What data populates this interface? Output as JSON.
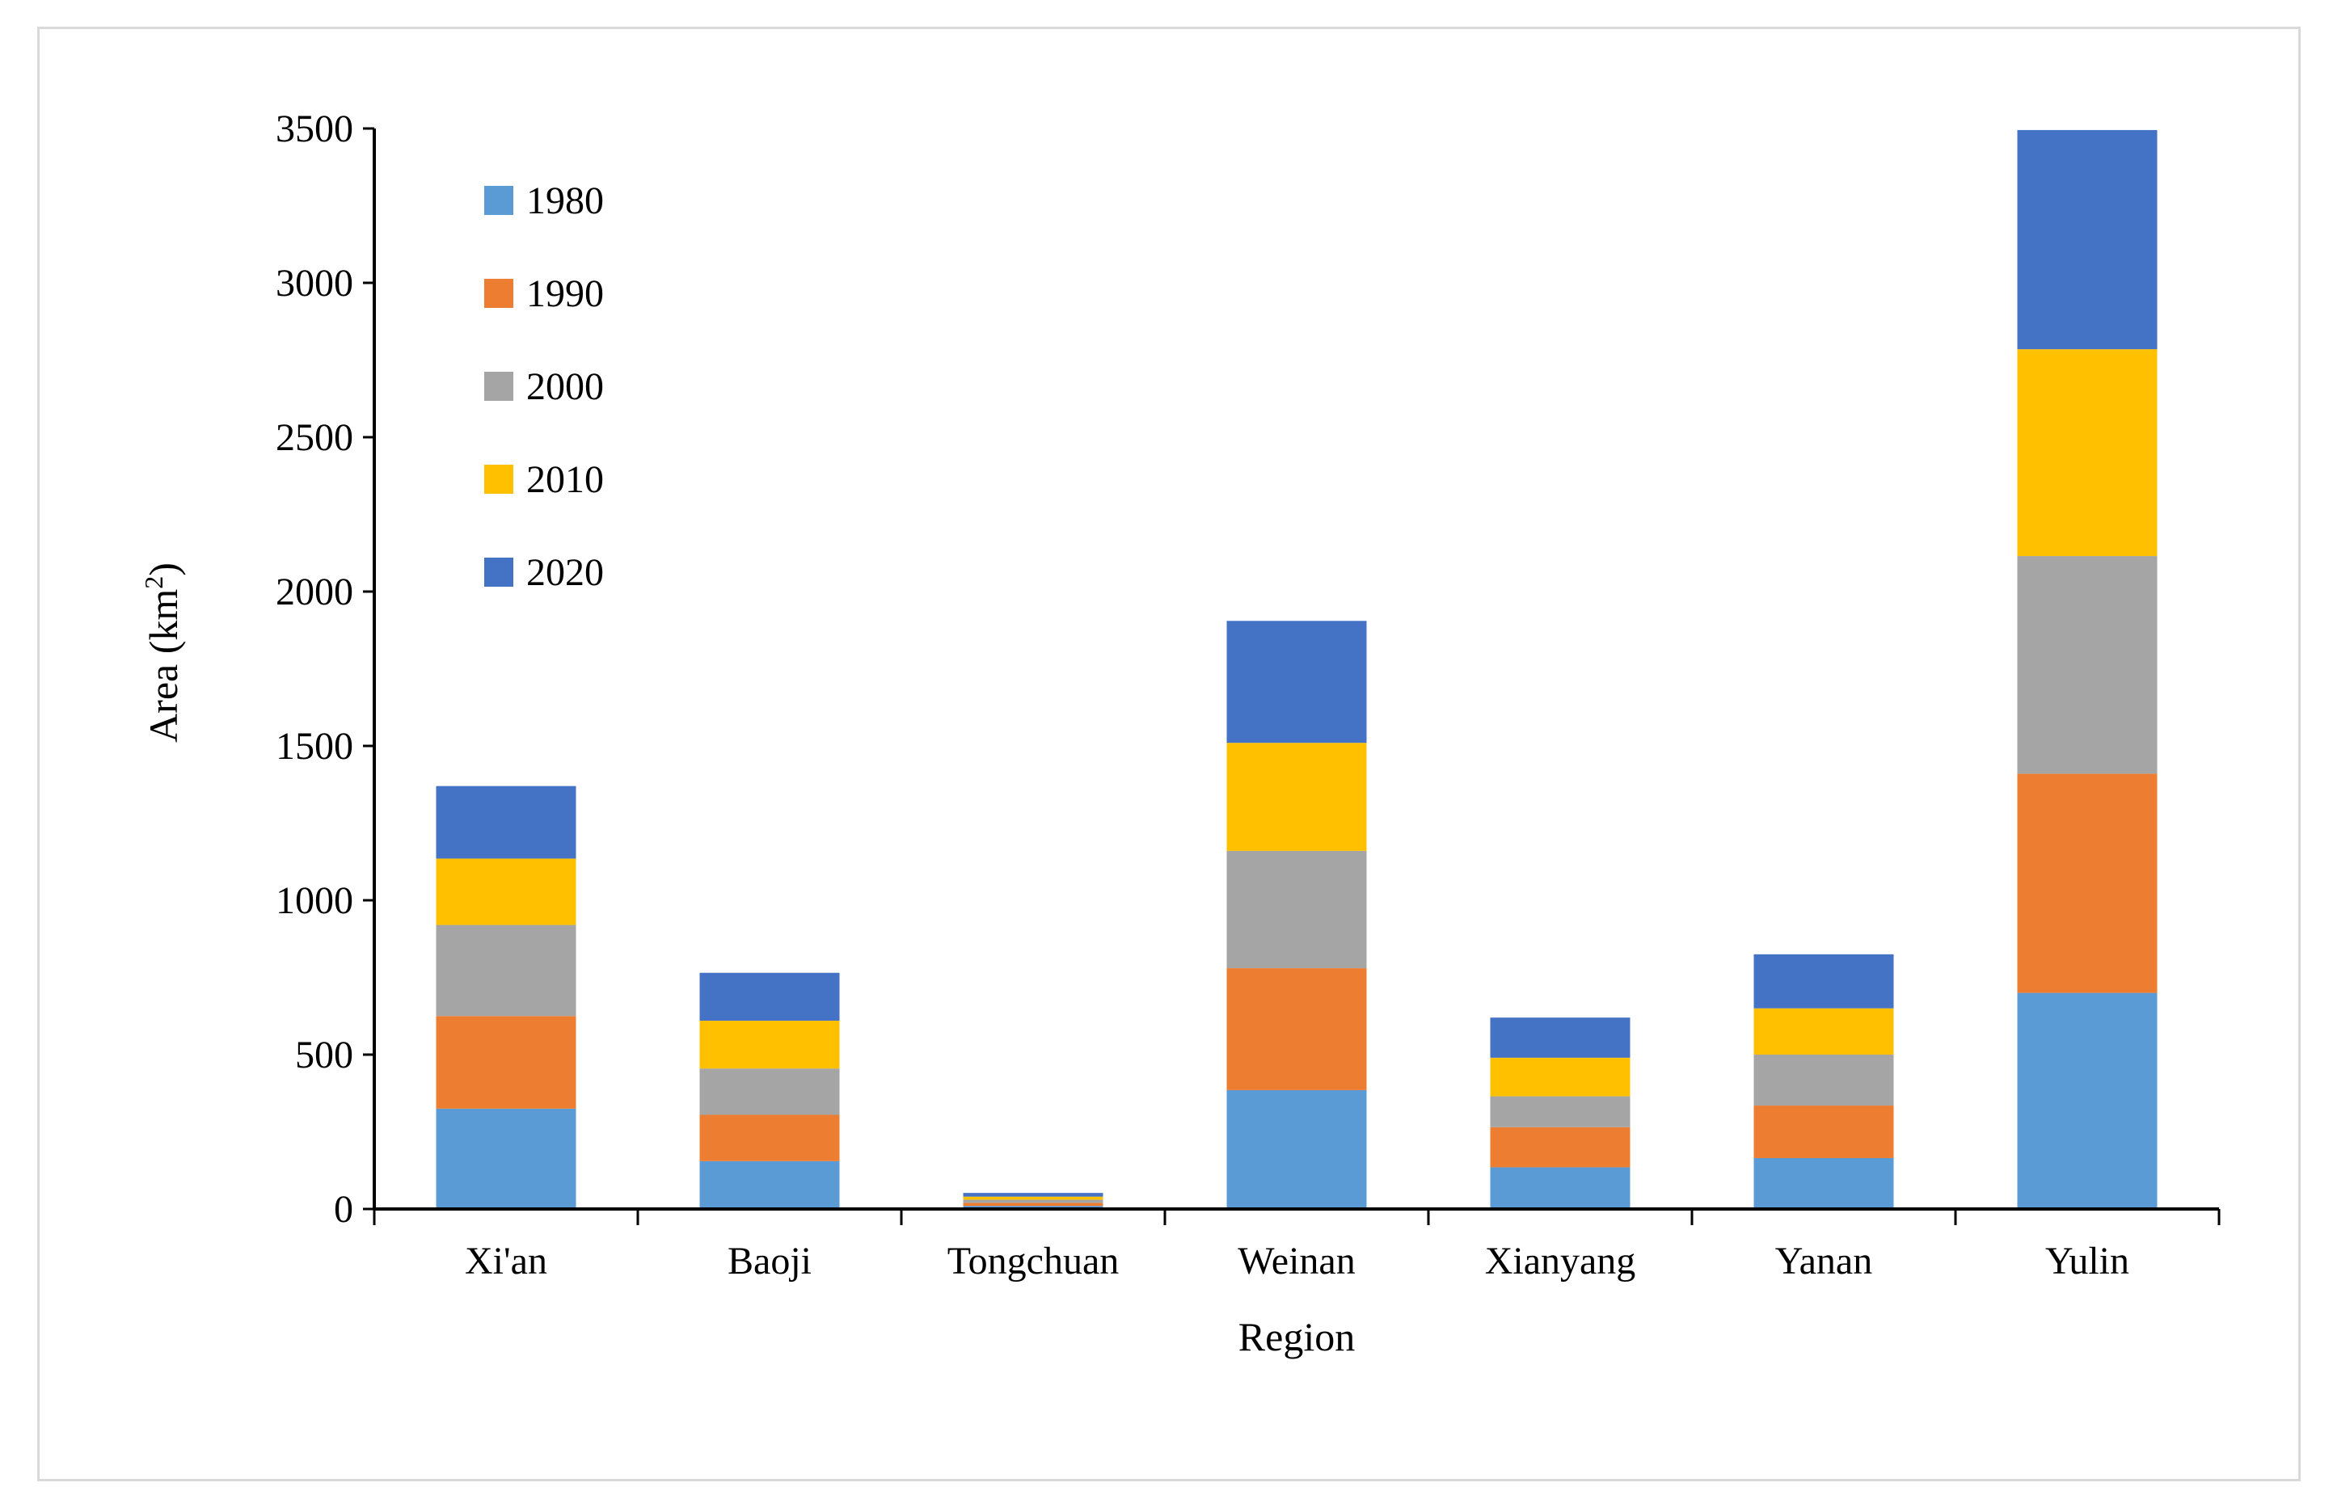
{
  "chart_data": {
    "type": "bar",
    "stacked": true,
    "title": "",
    "xlabel": "Region",
    "ylabel": "Area (km",
    "ylabel_superscript": "2",
    "ylabel_close": ")",
    "ylim": [
      0,
      3500
    ],
    "yticks": [
      0,
      500,
      1000,
      1500,
      2000,
      2500,
      3000,
      3500
    ],
    "grid": false,
    "legend_position": "top-left",
    "categories": [
      "Xi'an",
      "Baoji",
      "Tongchuan",
      "Weinan",
      "Xianyang",
      "Yanan",
      "Yulin"
    ],
    "series": [
      {
        "name": "1980",
        "color": "#5b9bd5",
        "values": [
          325,
          155,
          10,
          385,
          135,
          165,
          700
        ]
      },
      {
        "name": "1990",
        "color": "#ed7d31",
        "values": [
          300,
          150,
          10,
          395,
          130,
          170,
          710
        ]
      },
      {
        "name": "2000",
        "color": "#a5a5a5",
        "values": [
          295,
          150,
          10,
          380,
          100,
          165,
          705
        ]
      },
      {
        "name": "2010",
        "color": "#ffc000",
        "values": [
          215,
          155,
          10,
          350,
          125,
          150,
          670
        ]
      },
      {
        "name": "2020",
        "color": "#4472c4",
        "values": [
          235,
          155,
          12,
          395,
          130,
          175,
          710
        ]
      }
    ]
  }
}
